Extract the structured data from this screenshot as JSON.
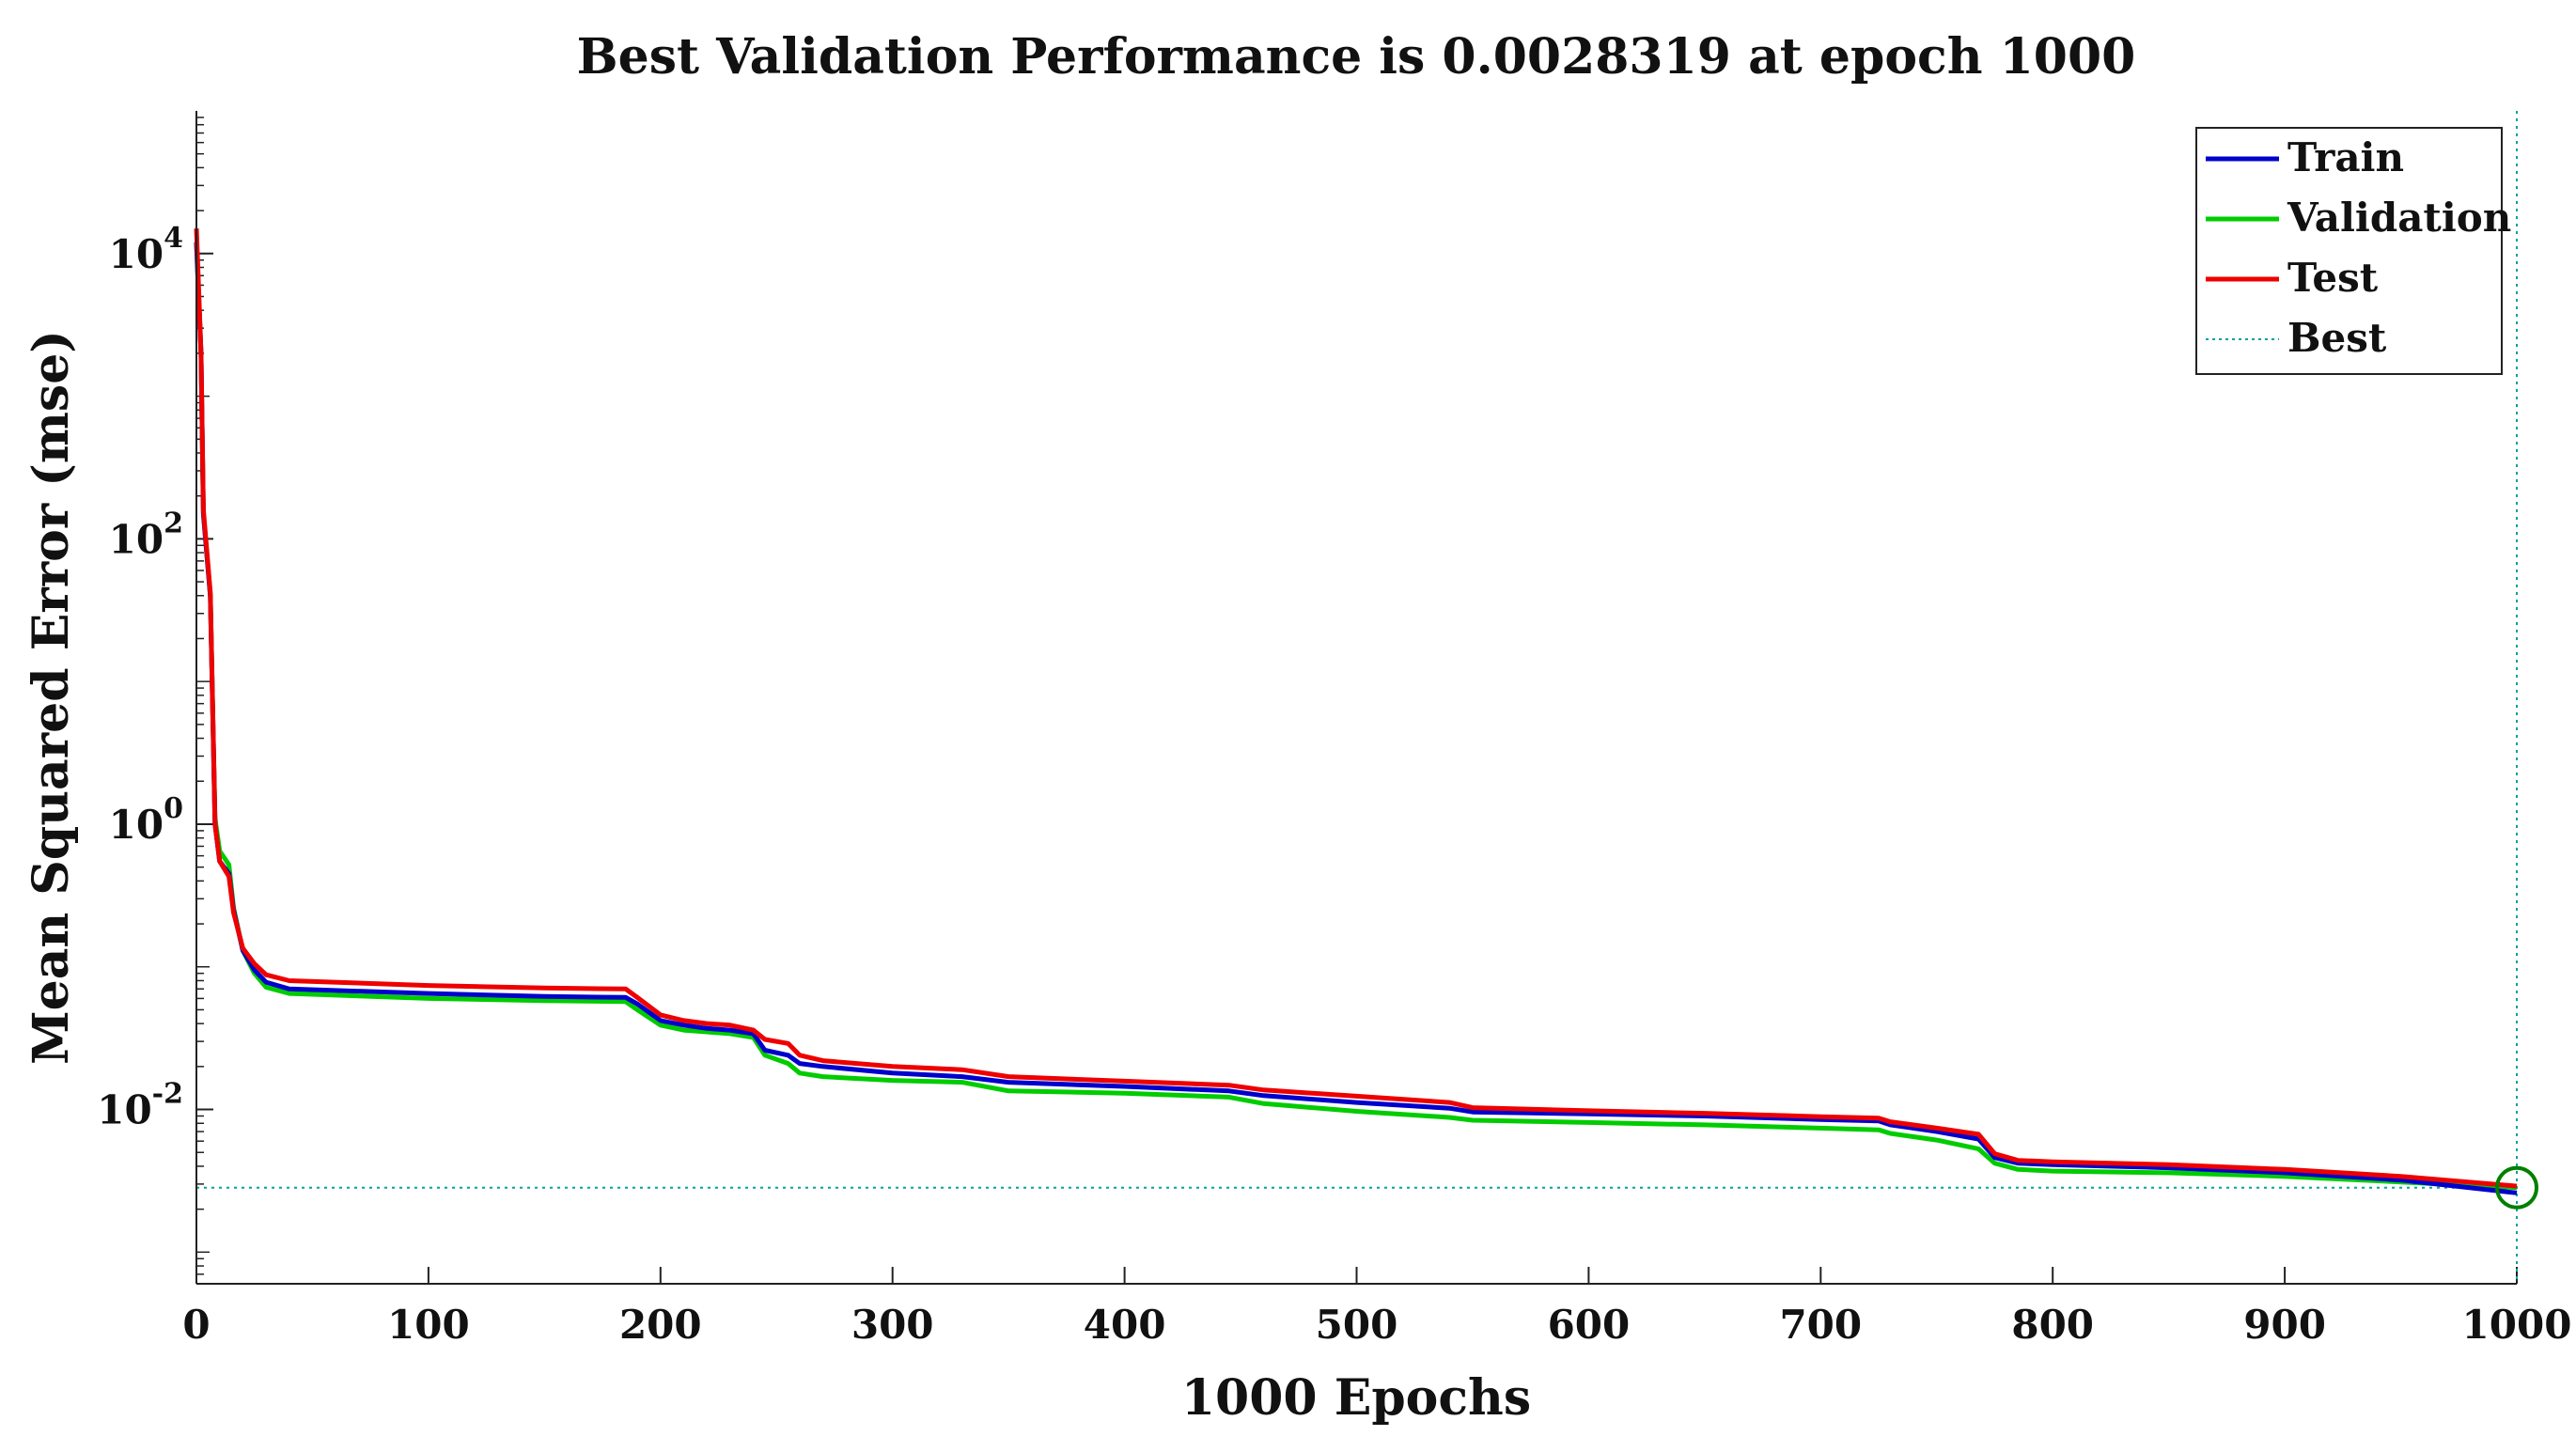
{
  "chart_data": {
    "type": "line",
    "title": "Best Validation Performance is 0.0028319 at epoch 1000",
    "xlabel": "1000 Epochs",
    "ylabel": "Mean Squared Error  (mse)",
    "yscale": "log",
    "xlim": [
      0,
      1000
    ],
    "ylim": [
      0.0006,
      100000
    ],
    "x_ticks": [
      0,
      100,
      200,
      300,
      400,
      500,
      600,
      700,
      800,
      900,
      1000
    ],
    "x_tick_labels": [
      "0",
      "100",
      "200",
      "300",
      "400",
      "500",
      "600",
      "700",
      "800",
      "900",
      "1000"
    ],
    "y_ticks": [
      {
        "value": 10000,
        "base": "10",
        "exp": "4"
      },
      {
        "value": 100,
        "base": "10",
        "exp": "2"
      },
      {
        "value": 1,
        "base": "10",
        "exp": "0"
      },
      {
        "value": 0.01,
        "base": "10",
        "exp": "-2"
      }
    ],
    "best": {
      "epoch": 1000,
      "value": 0.0028319,
      "label": "Best",
      "color": "#00a0a0",
      "marker_color": "#008000"
    },
    "legend_position": "top-right",
    "series": [
      {
        "name": "Train",
        "color": "#0000cc",
        "points": [
          [
            0,
            12000
          ],
          [
            2,
            2000
          ],
          [
            3,
            150
          ],
          [
            6,
            40
          ],
          [
            8,
            1.0
          ],
          [
            10,
            0.55
          ],
          [
            14,
            0.45
          ],
          [
            16,
            0.25
          ],
          [
            20,
            0.13
          ],
          [
            25,
            0.095
          ],
          [
            30,
            0.078
          ],
          [
            40,
            0.07
          ],
          [
            100,
            0.065
          ],
          [
            150,
            0.062
          ],
          [
            185,
            0.061
          ],
          [
            190,
            0.055
          ],
          [
            200,
            0.042
          ],
          [
            210,
            0.039
          ],
          [
            220,
            0.037
          ],
          [
            230,
            0.036
          ],
          [
            240,
            0.034
          ],
          [
            245,
            0.026
          ],
          [
            255,
            0.024
          ],
          [
            260,
            0.021
          ],
          [
            270,
            0.02
          ],
          [
            300,
            0.018
          ],
          [
            330,
            0.017
          ],
          [
            350,
            0.0155
          ],
          [
            400,
            0.0145
          ],
          [
            445,
            0.0135
          ],
          [
            460,
            0.0125
          ],
          [
            500,
            0.0112
          ],
          [
            540,
            0.0102
          ],
          [
            550,
            0.0096
          ],
          [
            600,
            0.0093
          ],
          [
            650,
            0.009
          ],
          [
            700,
            0.0085
          ],
          [
            725,
            0.0083
          ],
          [
            730,
            0.0078
          ],
          [
            750,
            0.007
          ],
          [
            768,
            0.0062
          ],
          [
            775,
            0.0046
          ],
          [
            785,
            0.0042
          ],
          [
            800,
            0.0041
          ],
          [
            850,
            0.0039
          ],
          [
            900,
            0.0036
          ],
          [
            950,
            0.0032
          ],
          [
            1000,
            0.0026
          ]
        ]
      },
      {
        "name": "Validation",
        "color": "#00cc00",
        "points": [
          [
            0,
            12000
          ],
          [
            2,
            2000
          ],
          [
            3,
            150
          ],
          [
            6,
            40
          ],
          [
            8,
            1.1
          ],
          [
            10,
            0.65
          ],
          [
            14,
            0.52
          ],
          [
            16,
            0.26
          ],
          [
            20,
            0.13
          ],
          [
            25,
            0.09
          ],
          [
            30,
            0.072
          ],
          [
            40,
            0.065
          ],
          [
            100,
            0.06
          ],
          [
            150,
            0.058
          ],
          [
            185,
            0.057
          ],
          [
            190,
            0.05
          ],
          [
            200,
            0.039
          ],
          [
            210,
            0.036
          ],
          [
            220,
            0.035
          ],
          [
            230,
            0.034
          ],
          [
            240,
            0.032
          ],
          [
            245,
            0.024
          ],
          [
            255,
            0.021
          ],
          [
            260,
            0.018
          ],
          [
            270,
            0.017
          ],
          [
            300,
            0.016
          ],
          [
            330,
            0.0155
          ],
          [
            350,
            0.0135
          ],
          [
            400,
            0.013
          ],
          [
            445,
            0.0122
          ],
          [
            460,
            0.011
          ],
          [
            500,
            0.0097
          ],
          [
            540,
            0.0088
          ],
          [
            550,
            0.0084
          ],
          [
            600,
            0.0081
          ],
          [
            650,
            0.0078
          ],
          [
            700,
            0.0074
          ],
          [
            725,
            0.0072
          ],
          [
            730,
            0.0068
          ],
          [
            750,
            0.0061
          ],
          [
            768,
            0.0053
          ],
          [
            775,
            0.0042
          ],
          [
            785,
            0.0038
          ],
          [
            800,
            0.0037
          ],
          [
            850,
            0.0036
          ],
          [
            900,
            0.0034
          ],
          [
            950,
            0.0031
          ],
          [
            1000,
            0.0028319
          ]
        ]
      },
      {
        "name": "Test",
        "color": "#ee0000",
        "points": [
          [
            0,
            15000
          ],
          [
            2,
            2000
          ],
          [
            3,
            160
          ],
          [
            6,
            42
          ],
          [
            8,
            1.0
          ],
          [
            10,
            0.55
          ],
          [
            14,
            0.43
          ],
          [
            16,
            0.24
          ],
          [
            20,
            0.135
          ],
          [
            25,
            0.105
          ],
          [
            30,
            0.088
          ],
          [
            40,
            0.08
          ],
          [
            100,
            0.074
          ],
          [
            150,
            0.071
          ],
          [
            185,
            0.07
          ],
          [
            190,
            0.061
          ],
          [
            200,
            0.046
          ],
          [
            210,
            0.042
          ],
          [
            220,
            0.04
          ],
          [
            230,
            0.039
          ],
          [
            240,
            0.036
          ],
          [
            245,
            0.031
          ],
          [
            255,
            0.029
          ],
          [
            260,
            0.024
          ],
          [
            270,
            0.022
          ],
          [
            300,
            0.02
          ],
          [
            330,
            0.019
          ],
          [
            350,
            0.017
          ],
          [
            400,
            0.0158
          ],
          [
            445,
            0.0148
          ],
          [
            460,
            0.0137
          ],
          [
            500,
            0.0124
          ],
          [
            540,
            0.0112
          ],
          [
            550,
            0.0103
          ],
          [
            600,
            0.0098
          ],
          [
            650,
            0.0094
          ],
          [
            700,
            0.0089
          ],
          [
            725,
            0.0087
          ],
          [
            730,
            0.0082
          ],
          [
            750,
            0.0074
          ],
          [
            768,
            0.0067
          ],
          [
            775,
            0.0049
          ],
          [
            785,
            0.0044
          ],
          [
            800,
            0.0043
          ],
          [
            850,
            0.0041
          ],
          [
            900,
            0.0038
          ],
          [
            950,
            0.0034
          ],
          [
            1000,
            0.0029
          ]
        ]
      }
    ]
  }
}
